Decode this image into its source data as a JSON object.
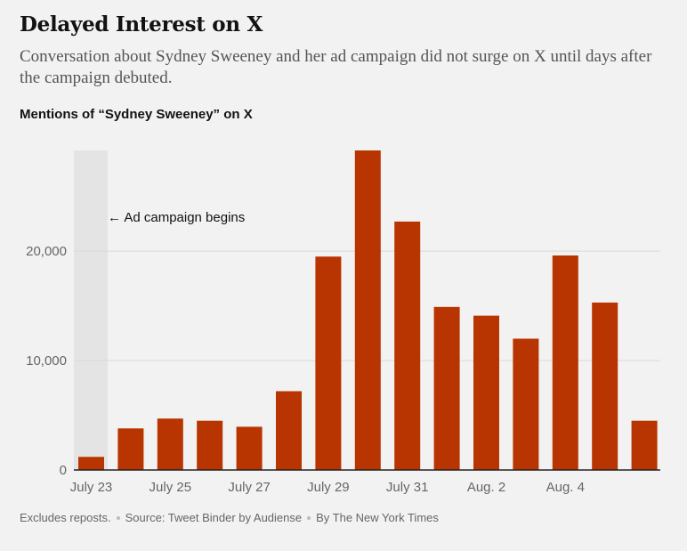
{
  "header": {
    "title": "Delayed Interest on X",
    "subtitle": "Conversation about Sydney Sweeney and her ad campaign did not surge on X until days after the campaign debuted."
  },
  "colors": {
    "bar": "#b83400",
    "shade": "#e4e4e4",
    "grid": "#d9d9d9",
    "axis": "#222222"
  },
  "chart_data": {
    "type": "bar",
    "title": "Mentions of “Sydney Sweeney” on X",
    "xlabel": "",
    "ylabel": "",
    "ylim": [
      0,
      29200
    ],
    "yticks": [
      0,
      10000,
      20000
    ],
    "ytick_labels": [
      "0",
      "10,000",
      "20,000"
    ],
    "categories": [
      "July 23",
      "July 24",
      "July 25",
      "July 26",
      "July 27",
      "July 28",
      "July 29",
      "July 30",
      "July 31",
      "Aug. 1",
      "Aug. 2",
      "Aug. 3",
      "Aug. 4",
      "Aug. 5",
      "Aug. 6"
    ],
    "values": [
      1200,
      3800,
      4700,
      4500,
      3950,
      7200,
      19500,
      29200,
      22700,
      14900,
      14100,
      12000,
      19600,
      15300,
      4500
    ],
    "xtick_labels": [
      "July 23",
      "",
      "July 25",
      "",
      "July 27",
      "",
      "July 29",
      "",
      "July 31",
      "",
      "Aug. 2",
      "",
      "Aug. 4",
      "",
      ""
    ],
    "annotation": {
      "text": "← Ad campaign begins",
      "category": "July 23"
    },
    "grid": true
  },
  "footer": {
    "note": "Excludes reposts.",
    "source": "Source: Tweet Binder by Audiense",
    "credit": "By The New York Times"
  }
}
